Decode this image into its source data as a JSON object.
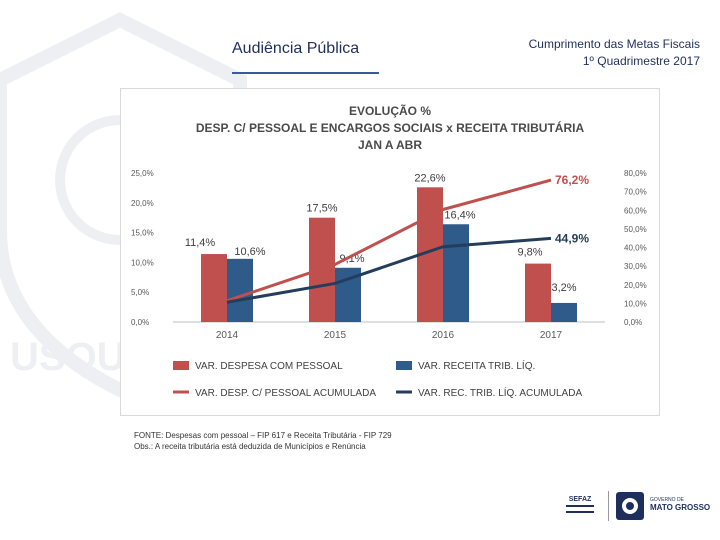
{
  "slide": {
    "title": "Audiência Pública",
    "meta_line1": "Cumprimento das Metas Fiscais",
    "meta_line2": "1º Quadrimestre 2017"
  },
  "chart_data": {
    "type": "bar",
    "title": "EVOLUÇÃO %",
    "subtitle_line1": "DESP. C/ PESSOAL E ENCARGOS SOCIAIS x RECEITA TRIBUTÁRIA",
    "subtitle_line2": "JAN A ABR",
    "categories": [
      "2014",
      "2015",
      "2016",
      "2017"
    ],
    "left_axis": {
      "min": 0,
      "max": 25,
      "ticks": [
        "0,0%",
        "5,0%",
        "10,0%",
        "15,0%",
        "20,0%",
        "25,0%"
      ]
    },
    "right_axis": {
      "min": 0,
      "max": 80,
      "ticks": [
        "0,0%",
        "10,0%",
        "20,0%",
        "30,0%",
        "40,0%",
        "50,0%",
        "60,0%",
        "70,0%",
        "80,0%"
      ]
    },
    "series": [
      {
        "name": "VAR. DESPESA COM PESSOAL",
        "kind": "bar",
        "axis": "left",
        "color": "#c0504d",
        "values": [
          11.4,
          17.5,
          22.6,
          9.8
        ],
        "labels": [
          "11,4%",
          "17,5%",
          "22,6%",
          "9,8%"
        ]
      },
      {
        "name": "VAR. RECEITA TRIB. LÍQ.",
        "kind": "bar",
        "axis": "left",
        "color": "#2e5b8a",
        "values": [
          10.6,
          9.1,
          16.4,
          3.2
        ],
        "labels": [
          "10,6%",
          "9,1%",
          "16,4%",
          "3,2%"
        ]
      },
      {
        "name": "VAR. DESP. C/ PESSOAL ACUMULADA",
        "kind": "line",
        "axis": "right",
        "color": "#c0504d",
        "values": [
          11.4,
          30.9,
          60.4,
          76.2
        ],
        "end_label": "76,2%"
      },
      {
        "name": "VAR. REC. TRIB. LÍQ. ACUMULADA",
        "kind": "line",
        "axis": "right",
        "color": "#253d5c",
        "values": [
          10.6,
          20.7,
          40.4,
          44.9
        ],
        "end_label": "44,9%"
      }
    ]
  },
  "footnote": {
    "line1": "FONTE: Despesas com pessoal – FIP 617 e Receita Tributária - FIP 729",
    "line2": "Obs.: A receita tributária está deduzida de Municípios e Renúncia"
  },
  "footer": {
    "sefaz_label": "SEFAZ",
    "gov_label1": "GOVERNO DE",
    "gov_label2": "MATO GROSSO"
  },
  "watermark_text": "USQUAM"
}
